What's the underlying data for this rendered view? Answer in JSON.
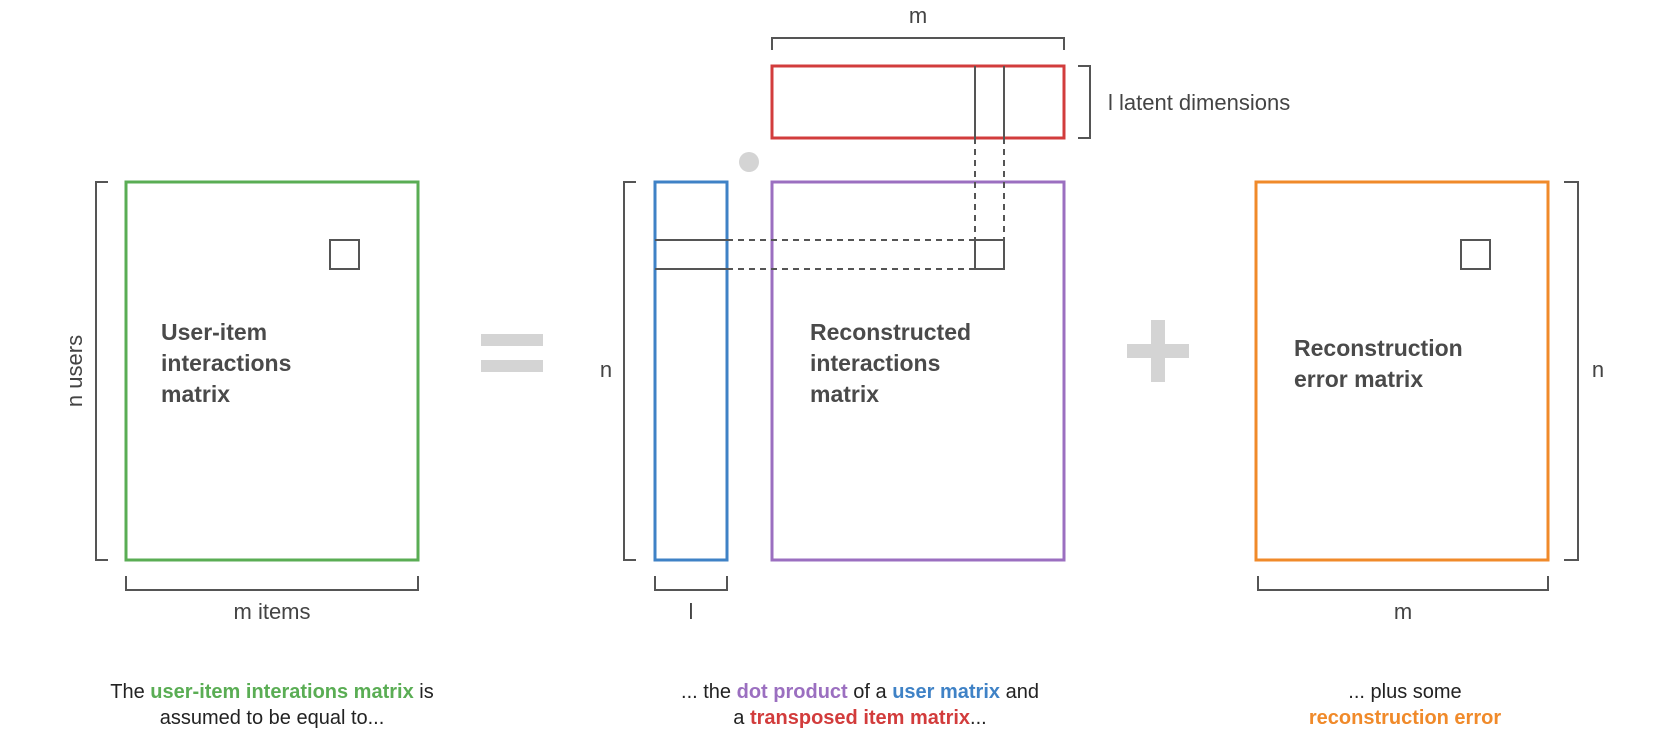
{
  "colors": {
    "green": "#5aad54",
    "purple": "#9b6fc0",
    "blue": "#3f82c6",
    "red": "#d23c3c",
    "orange": "#f08a2a",
    "bracket": "#555555",
    "operator": "#d4d4d4"
  },
  "labels": {
    "n_users": "n users",
    "m_items": "m items",
    "n_left": "n",
    "l_bottom": "l",
    "m_top": "m",
    "latent": "l latent dimensions",
    "n_right": "n",
    "m_right": "m"
  },
  "matrices": {
    "interactions": [
      "User-item",
      "interactions",
      "matrix"
    ],
    "reconstructed": [
      "Reconstructed",
      "interactions",
      "matrix"
    ],
    "error": [
      "Reconstruction",
      "error matrix"
    ]
  },
  "operators": {
    "equals": "=",
    "plus": "+",
    "dot": "•"
  },
  "captions": {
    "left": {
      "pre": "The ",
      "highlight": "user-item interations matrix",
      "post": " is",
      "line2": "assumed to be equal to..."
    },
    "middle": {
      "pre": "... the ",
      "h1": "dot product",
      "mid1": " of a ",
      "h2": "user matrix",
      "mid2": " and",
      "line2_pre": "a ",
      "h3": "transposed item matrix",
      "line2_post": "..."
    },
    "right": {
      "line1": "... plus some",
      "highlight": "reconstruction error"
    }
  }
}
